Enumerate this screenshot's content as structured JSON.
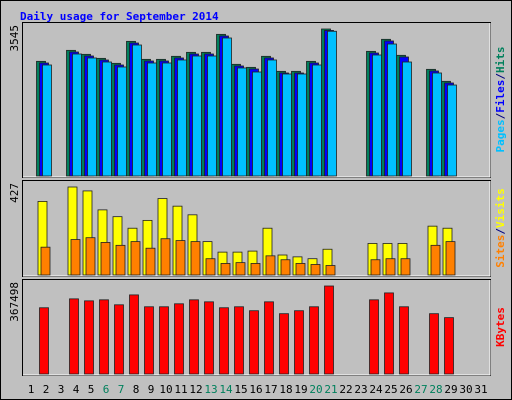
{
  "chart_data": [
    {
      "type": "bar",
      "title": "Daily usage for September 2014",
      "categories": [
        "1",
        "2",
        "3",
        "4",
        "5",
        "6",
        "7",
        "8",
        "9",
        "10",
        "11",
        "12",
        "13",
        "14",
        "15",
        "16",
        "17",
        "18",
        "19",
        "20",
        "21",
        "22",
        "23",
        "24",
        "25",
        "26",
        "27",
        "28",
        "29",
        "30",
        "31"
      ],
      "category_colors": [
        "#000000",
        "#000000",
        "#000000",
        "#000000",
        "#000000",
        "#00805c",
        "#00805c",
        "#000000",
        "#000000",
        "#000000",
        "#000000",
        "#000000",
        "#00805c",
        "#00805c",
        "#000000",
        "#000000",
        "#000000",
        "#000000",
        "#000000",
        "#00805c",
        "#00805c",
        "#000000",
        "#000000",
        "#000000",
        "#000000",
        "#000000",
        "#00805c",
        "#00805c",
        "#000000",
        "#000000",
        "#000000"
      ],
      "ylim": [
        0,
        3545
      ],
      "yticks": [
        3545
      ],
      "legend_separator": "/",
      "series": [
        {
          "name": "Hits",
          "color": "#00805c",
          "values": [
            0,
            2765,
            0,
            3030,
            2934,
            2837,
            2717,
            3247,
            2813,
            2813,
            2886,
            2982,
            2982,
            3416,
            2693,
            2620,
            2886,
            2524,
            2524,
            2765,
            3545,
            0,
            0,
            3006,
            3296,
            2910,
            0,
            2572,
            2283,
            0,
            0
          ]
        },
        {
          "name": "Files",
          "color": "#0000ff",
          "values": [
            0,
            2725,
            0,
            2990,
            2894,
            2797,
            2677,
            3207,
            2773,
            2773,
            2846,
            2942,
            2942,
            3376,
            2653,
            2580,
            2846,
            2484,
            2484,
            2725,
            3510,
            0,
            0,
            2966,
            3256,
            2870,
            0,
            2532,
            2243,
            0,
            0
          ]
        },
        {
          "name": "Pages",
          "color": "#00c0ff",
          "values": [
            0,
            2677,
            0,
            2942,
            2846,
            2749,
            2629,
            3159,
            2725,
            2725,
            2798,
            2894,
            2894,
            3328,
            2605,
            2508,
            2798,
            2460,
            2460,
            2677,
            3490,
            0,
            0,
            2918,
            3183,
            2749,
            0,
            2484,
            2194,
            0,
            0
          ]
        }
      ]
    },
    {
      "type": "bar",
      "ylim": [
        0,
        427
      ],
      "yticks": [
        427
      ],
      "legend_separator": "/",
      "series": [
        {
          "name": "Visits",
          "color": "#ffff00",
          "values": [
            0,
            357,
            0,
            427,
            408,
            316,
            283,
            227,
            265,
            371,
            334,
            292,
            162,
            111,
            111,
            116,
            227,
            97,
            88,
            79,
            125,
            0,
            0,
            153,
            153,
            153,
            0,
            237,
            227,
            0,
            0
          ]
        },
        {
          "name": "Sites",
          "color": "#ff8000",
          "values": [
            0,
            135,
            0,
            172,
            181,
            158,
            144,
            162,
            130,
            176,
            167,
            162,
            79,
            56,
            60,
            56,
            93,
            74,
            56,
            51,
            46,
            0,
            0,
            74,
            79,
            79,
            0,
            144,
            162,
            0,
            0
          ]
        }
      ]
    },
    {
      "type": "bar",
      "ylim": [
        0,
        367498
      ],
      "yticks": [
        367498
      ],
      "series": [
        {
          "name": "KBytes",
          "color": "#ff0000",
          "values": [
            0,
            276650,
            0,
            313800,
            305500,
            309800,
            289000,
            330300,
            280800,
            280800,
            293200,
            309800,
            301400,
            276700,
            280800,
            264300,
            301400,
            251900,
            264300,
            280800,
            367498,
            0,
            0,
            309800,
            338600,
            280800,
            0,
            251900,
            235400,
            0,
            0
          ]
        }
      ]
    }
  ]
}
